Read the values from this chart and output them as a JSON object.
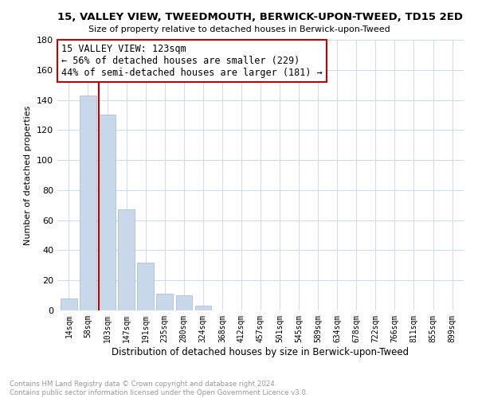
{
  "title": "15, VALLEY VIEW, TWEEDMOUTH, BERWICK-UPON-TWEED, TD15 2ED",
  "subtitle": "Size of property relative to detached houses in Berwick-upon-Tweed",
  "xlabel": "Distribution of detached houses by size in Berwick-upon-Tweed",
  "ylabel": "Number of detached properties",
  "categories": [
    "14sqm",
    "58sqm",
    "103sqm",
    "147sqm",
    "191sqm",
    "235sqm",
    "280sqm",
    "324sqm",
    "368sqm",
    "412sqm",
    "457sqm",
    "501sqm",
    "545sqm",
    "589sqm",
    "634sqm",
    "678sqm",
    "722sqm",
    "766sqm",
    "811sqm",
    "855sqm",
    "899sqm"
  ],
  "values": [
    8,
    143,
    130,
    67,
    32,
    11,
    10,
    3,
    0,
    0,
    0,
    0,
    0,
    0,
    0,
    0,
    0,
    0,
    0,
    0,
    0
  ],
  "bar_color": "#c8d8ea",
  "bar_edge_color": "#a0b8d0",
  "highlight_color": "#c00000",
  "highlight_index": 2,
  "annotation_text": "15 VALLEY VIEW: 123sqm\n← 56% of detached houses are smaller (229)\n44% of semi-detached houses are larger (181) →",
  "annotation_box_color": "#ffffff",
  "annotation_box_edge": "#c00000",
  "ylim": [
    0,
    180
  ],
  "yticks": [
    0,
    20,
    40,
    60,
    80,
    100,
    120,
    140,
    160,
    180
  ],
  "footnote": "Contains HM Land Registry data © Crown copyright and database right 2024.\nContains public sector information licensed under the Open Government Licence v3.0.",
  "background_color": "#ffffff",
  "grid_color": "#d0dce8"
}
